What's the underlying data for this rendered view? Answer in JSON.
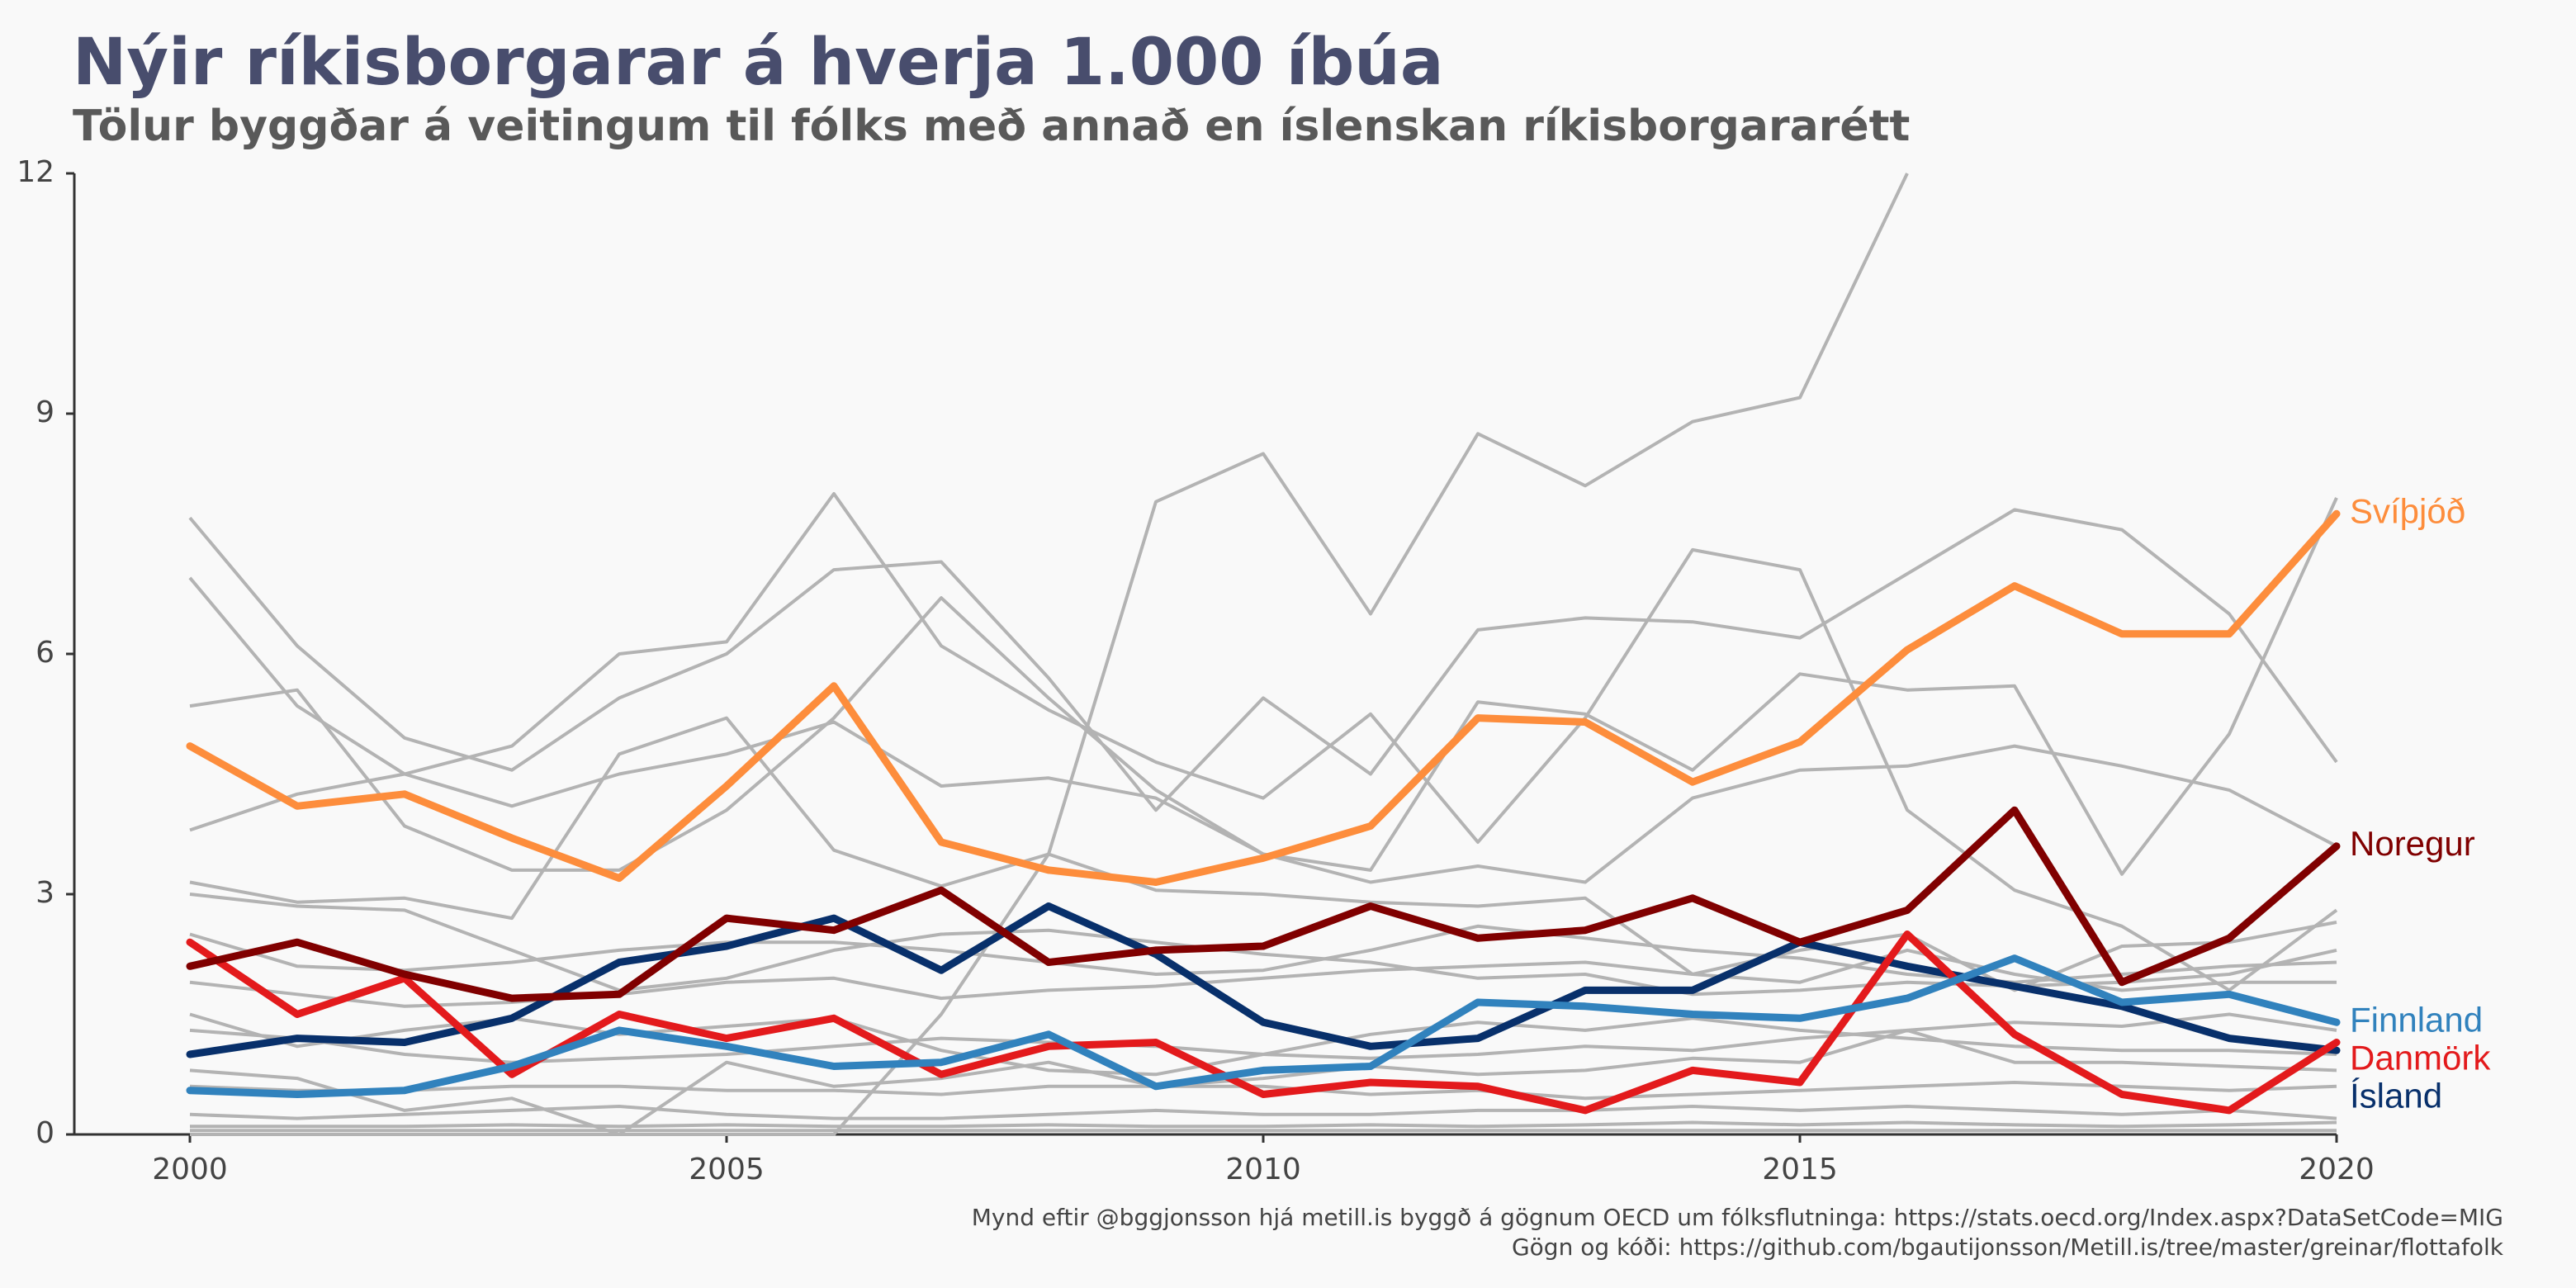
{
  "chart_data": {
    "type": "line",
    "title": "Nýir ríkisborgarar á hverja 1.000 íbúa",
    "subtitle": "Tölur byggðar á veitingum til fólks með annað en íslenskan ríkisborgararétt",
    "xlabel": "",
    "ylabel": "",
    "xlim": [
      2000,
      2020
    ],
    "ylim": [
      0,
      12
    ],
    "x_ticks": [
      2000,
      2005,
      2010,
      2015,
      2020
    ],
    "y_ticks": [
      0,
      3,
      6,
      9,
      12
    ],
    "grid": false,
    "legend": "direct labels at right end of highlighted lines",
    "x": [
      2000,
      2001,
      2002,
      2003,
      2004,
      2005,
      2006,
      2007,
      2008,
      2009,
      2010,
      2011,
      2012,
      2013,
      2014,
      2015,
      2016,
      2017,
      2018,
      2019,
      2020
    ],
    "series": [
      {
        "name": "Svíþjóð",
        "color": "#fd8d3c",
        "highlight": true,
        "values": [
          4.85,
          4.1,
          4.25,
          3.7,
          3.2,
          4.35,
          5.6,
          3.65,
          3.3,
          3.15,
          3.45,
          3.85,
          5.2,
          5.15,
          4.4,
          4.9,
          6.05,
          6.85,
          6.25,
          6.25,
          7.75
        ]
      },
      {
        "name": "Noregur",
        "color": "#800000",
        "highlight": true,
        "values": [
          2.1,
          2.4,
          2.0,
          1.7,
          1.75,
          2.7,
          2.55,
          3.05,
          2.15,
          2.3,
          2.35,
          2.85,
          2.45,
          2.55,
          2.95,
          2.4,
          2.8,
          4.05,
          1.9,
          2.45,
          3.6
        ]
      },
      {
        "name": "Finnland",
        "color": "#3182bd",
        "highlight": true,
        "values": [
          0.55,
          0.5,
          0.55,
          0.85,
          1.3,
          1.1,
          0.85,
          0.9,
          1.25,
          0.6,
          0.8,
          0.85,
          1.65,
          1.6,
          1.5,
          1.45,
          1.7,
          2.2,
          1.65,
          1.75,
          1.4
        ]
      },
      {
        "name": "Danmörk",
        "color": "#e31a1c",
        "highlight": true,
        "values": [
          2.4,
          1.5,
          1.95,
          0.75,
          1.5,
          1.2,
          1.45,
          0.75,
          1.1,
          1.15,
          0.5,
          0.65,
          0.6,
          0.3,
          0.8,
          0.65,
          2.5,
          1.25,
          0.5,
          0.3,
          1.15
        ]
      },
      {
        "name": "Ísland",
        "color": "#08306b",
        "highlight": true,
        "values": [
          1.0,
          1.2,
          1.15,
          1.45,
          2.15,
          2.35,
          2.7,
          2.05,
          2.85,
          2.25,
          1.4,
          1.1,
          1.2,
          1.8,
          1.8,
          2.4,
          2.1,
          1.85,
          1.6,
          1.2,
          1.05
        ]
      },
      {
        "name": "",
        "color": "#b3b3b3",
        "highlight": false,
        "values": [
          7.7,
          6.1,
          4.95,
          4.55,
          5.45,
          6.0,
          7.05,
          7.15,
          5.7,
          4.05,
          5.45,
          4.5,
          6.3,
          6.45,
          6.4,
          6.2,
          7.0,
          7.8,
          7.55,
          6.5,
          4.65
        ]
      },
      {
        "name": "",
        "color": "#b3b3b3",
        "highlight": false,
        "values": [
          6.95,
          5.35,
          4.5,
          4.85,
          6.0,
          6.15,
          8.0,
          6.1,
          5.3,
          4.65,
          4.2,
          5.25,
          3.65,
          5.2,
          7.3,
          7.05,
          4.05,
          3.05,
          2.6,
          1.8,
          2.8
        ]
      },
      {
        "name": "",
        "color": "#b3b3b3",
        "highlight": false,
        "values": [
          0.0,
          0.0,
          0.0,
          0.0,
          0.0,
          0.0,
          0.0,
          1.5,
          3.5,
          7.9,
          8.5,
          6.5,
          8.75,
          8.1,
          8.9,
          9.2,
          12.0,
          null,
          null,
          null,
          null
        ]
      },
      {
        "name": "",
        "color": "#b3b3b3",
        "highlight": false,
        "values": [
          5.35,
          5.55,
          3.85,
          3.3,
          3.3,
          4.05,
          5.2,
          6.7,
          5.45,
          4.3,
          3.5,
          3.3,
          5.4,
          5.25,
          4.55,
          5.75,
          5.55,
          5.6,
          3.25,
          5.0,
          7.95
        ]
      },
      {
        "name": "",
        "color": "#b3b3b3",
        "highlight": false,
        "values": [
          3.8,
          4.25,
          4.5,
          4.1,
          4.5,
          4.75,
          5.15,
          4.35,
          4.45,
          4.2,
          3.5,
          3.15,
          3.35,
          3.15,
          4.2,
          4.55,
          4.6,
          4.85,
          4.6,
          4.3,
          3.6
        ]
      },
      {
        "name": "",
        "color": "#b3b3b3",
        "highlight": false,
        "values": [
          3.15,
          2.9,
          2.95,
          2.7,
          4.75,
          5.2,
          3.55,
          3.1,
          3.5,
          3.05,
          3.0,
          2.9,
          2.85,
          2.95,
          2.0,
          1.9,
          2.3,
          2.0,
          1.8,
          1.9,
          1.9
        ]
      },
      {
        "name": "",
        "color": "#b3b3b3",
        "highlight": false,
        "values": [
          3.0,
          2.85,
          2.8,
          2.3,
          1.8,
          1.95,
          2.3,
          2.5,
          2.55,
          2.4,
          2.25,
          2.15,
          1.95,
          2.0,
          1.75,
          1.8,
          1.9,
          1.85,
          1.9,
          2.0,
          2.3
        ]
      },
      {
        "name": "",
        "color": "#b3b3b3",
        "highlight": false,
        "values": [
          2.5,
          2.1,
          2.05,
          2.15,
          2.3,
          2.4,
          2.4,
          2.3,
          2.15,
          2.0,
          2.05,
          2.3,
          2.6,
          2.45,
          2.3,
          2.2,
          2.0,
          1.9,
          2.0,
          2.1,
          2.15
        ]
      },
      {
        "name": "",
        "color": "#b3b3b3",
        "highlight": false,
        "values": [
          1.9,
          1.75,
          1.6,
          1.65,
          1.75,
          1.9,
          1.95,
          1.7,
          1.8,
          1.85,
          1.95,
          2.05,
          2.1,
          2.15,
          2.0,
          2.3,
          2.5,
          1.8,
          2.35,
          2.4,
          2.65
        ]
      },
      {
        "name": "",
        "color": "#b3b3b3",
        "highlight": false,
        "values": [
          1.5,
          1.1,
          1.3,
          1.45,
          1.25,
          1.35,
          1.45,
          1.05,
          0.8,
          0.75,
          1.0,
          1.25,
          1.4,
          1.3,
          1.45,
          1.3,
          1.2,
          1.1,
          1.05,
          1.05,
          1.0
        ]
      },
      {
        "name": "",
        "color": "#b3b3b3",
        "highlight": false,
        "values": [
          1.3,
          1.2,
          1.0,
          0.9,
          0.95,
          1.0,
          1.1,
          1.2,
          1.15,
          1.1,
          1.0,
          0.95,
          1.0,
          1.1,
          1.05,
          1.2,
          1.3,
          1.4,
          1.35,
          1.5,
          1.3
        ]
      },
      {
        "name": "",
        "color": "#b3b3b3",
        "highlight": false,
        "values": [
          0.8,
          0.7,
          0.3,
          0.45,
          0.0,
          0.9,
          0.6,
          0.7,
          0.9,
          0.6,
          0.7,
          0.85,
          0.75,
          0.8,
          0.95,
          0.9,
          1.3,
          0.9,
          0.9,
          0.85,
          0.8
        ]
      },
      {
        "name": "",
        "color": "#b3b3b3",
        "highlight": false,
        "values": [
          0.6,
          0.55,
          0.55,
          0.6,
          0.6,
          0.55,
          0.55,
          0.5,
          0.6,
          0.6,
          0.6,
          0.5,
          0.55,
          0.45,
          0.5,
          0.55,
          0.6,
          0.65,
          0.6,
          0.55,
          0.6
        ]
      },
      {
        "name": "",
        "color": "#b3b3b3",
        "highlight": false,
        "values": [
          0.25,
          0.2,
          0.25,
          0.3,
          0.35,
          0.25,
          0.2,
          0.2,
          0.25,
          0.3,
          0.25,
          0.25,
          0.3,
          0.3,
          0.35,
          0.3,
          0.35,
          0.3,
          0.25,
          0.3,
          0.2
        ]
      },
      {
        "name": "",
        "color": "#b3b3b3",
        "highlight": false,
        "values": [
          0.1,
          0.1,
          0.1,
          0.12,
          0.1,
          0.12,
          0.1,
          0.1,
          0.12,
          0.1,
          0.1,
          0.12,
          0.1,
          0.12,
          0.15,
          0.12,
          0.15,
          0.12,
          0.1,
          0.12,
          0.15
        ]
      },
      {
        "name": "",
        "color": "#b3b3b3",
        "highlight": false,
        "values": [
          0.05,
          0.05,
          0.05,
          0.05,
          0.05,
          0.05,
          0.05,
          0.05,
          0.05,
          0.05,
          0.05,
          0.05,
          0.05,
          0.05,
          0.05,
          0.05,
          0.05,
          0.05,
          0.05,
          0.05,
          0.05
        ]
      }
    ]
  },
  "credits": {
    "line1": "Mynd eftir @bggjonsson hjá metill.is byggð á gögnum OECD um fólksflutninga: https://stats.oecd.org/Index.aspx?DataSetCode=MIG",
    "line2": "Gögn og kóði: https://github.com/bgautijonsson/Metill.is/tree/master/greinar/flottafolk"
  }
}
